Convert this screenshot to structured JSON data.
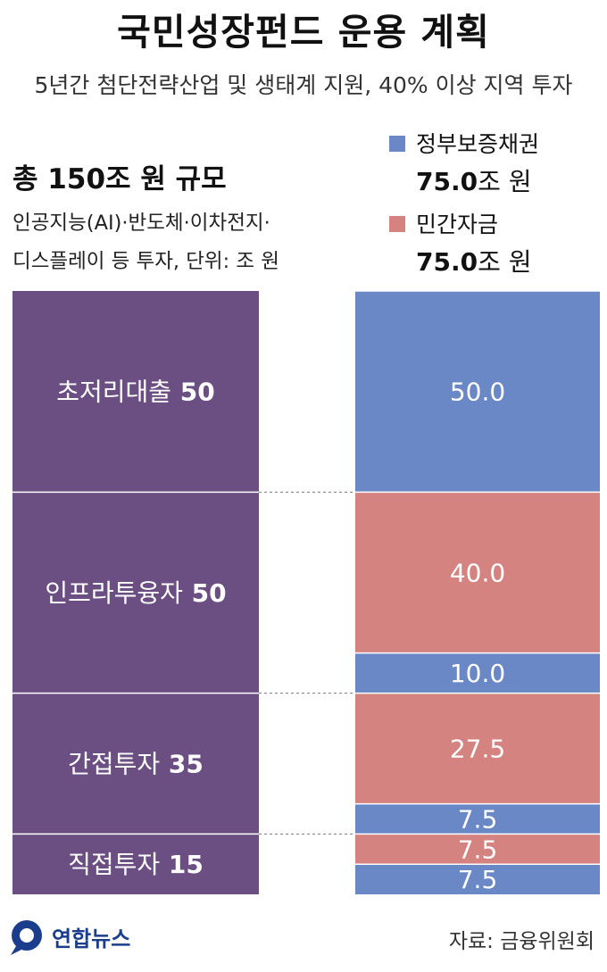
{
  "title": "국민성장펀드 운용 계획",
  "subtitle": "5년간 첨단전략산업 및 생태계 지원, 40% 이상 지역 투자",
  "total": "총 150조 원 규모",
  "note_line1": "인공지능(AI)·반도체·이차전지·",
  "note_line2": "디스플레이 등 투자, 단위: 조 원",
  "legend": [
    {
      "name": "정부보증채권",
      "value": "75.0",
      "unit": "조 원",
      "color": "#6a88c5"
    },
    {
      "name": "민간자금",
      "value": "75.0",
      "unit": "조 원",
      "color": "#d48381"
    }
  ],
  "colors": {
    "purple": "#6b4f82",
    "blue": "#6a88c5",
    "red": "#d48381"
  },
  "chart_data": {
    "type": "bar",
    "total": 150,
    "unit": "조 원",
    "categories": [
      {
        "label": "초저리대출",
        "value": 50,
        "segments": [
          {
            "series": "정부보증채권",
            "value": 50.0,
            "label": "50.0"
          }
        ]
      },
      {
        "label": "인프라투융자",
        "value": 50,
        "segments": [
          {
            "series": "민간자금",
            "value": 40.0,
            "label": "40.0"
          },
          {
            "series": "정부보증채권",
            "value": 10.0,
            "label": "10.0"
          }
        ]
      },
      {
        "label": "간접투자",
        "value": 35,
        "segments": [
          {
            "series": "민간자금",
            "value": 27.5,
            "label": "27.5"
          },
          {
            "series": "정부보증채권",
            "value": 7.5,
            "label": "7.5"
          }
        ]
      },
      {
        "label": "직접투자",
        "value": 15,
        "segments": [
          {
            "series": "민간자금",
            "value": 7.5,
            "label": "7.5"
          },
          {
            "series": "정부보증채권",
            "value": 7.5,
            "label": "7.5"
          }
        ]
      }
    ],
    "series": [
      {
        "name": "정부보증채권",
        "total": 75.0
      },
      {
        "name": "민간자금",
        "total": 75.0
      }
    ]
  },
  "logo_text": "연합뉴스",
  "source": "자료: 금융위원회"
}
